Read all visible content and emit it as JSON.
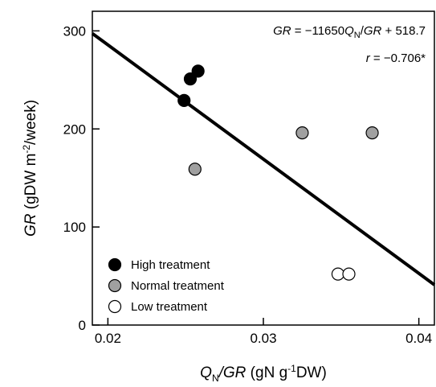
{
  "chart_data": {
    "type": "scatter",
    "xlim": [
      0.019,
      0.041
    ],
    "ylim": [
      0,
      320
    ],
    "x_ticks": [
      0.02,
      0.03,
      0.04
    ],
    "x_tick_labels": [
      "0.02",
      "0.03",
      "0.04"
    ],
    "y_ticks": [
      0,
      100,
      200,
      300
    ],
    "y_tick_labels": [
      "0",
      "100",
      "200",
      "300"
    ],
    "xlabel": {
      "var": "Q",
      "var_sub": "N",
      "var_rest": "/GR",
      "unit_a": " (gN g",
      "unit_sup": "-1",
      "unit_b": "DW)"
    },
    "ylabel": {
      "var": "GR",
      "unit_a": " (gDW m",
      "unit_sup": "-2",
      "unit_b": "/week)"
    },
    "equation": {
      "lhs": "GR",
      "mid": " = −11650",
      "q": "Q",
      "q_sub": "N",
      "slash": "/",
      "gr": "GR",
      "rest": " + 518.7"
    },
    "correlation": {
      "r": "r",
      "rest": " = −0.706*"
    },
    "regression": {
      "slope": -11650,
      "intercept": 518.7
    },
    "legend_position": "bottom-left",
    "series": [
      {
        "name": "High treatment",
        "fill": "#000000",
        "stroke": "#000000",
        "points": [
          [
            0.0249,
            229
          ],
          [
            0.0253,
            251
          ],
          [
            0.0258,
            259
          ]
        ]
      },
      {
        "name": "Normal treatment",
        "fill": "#a0a0a0",
        "stroke": "#000000",
        "points": [
          [
            0.0256,
            159
          ],
          [
            0.0325,
            196
          ],
          [
            0.037,
            196
          ]
        ]
      },
      {
        "name": "Low treatment",
        "fill": "#ffffff",
        "stroke": "#000000",
        "points": [
          [
            0.0348,
            52
          ],
          [
            0.0355,
            52
          ]
        ]
      }
    ]
  }
}
